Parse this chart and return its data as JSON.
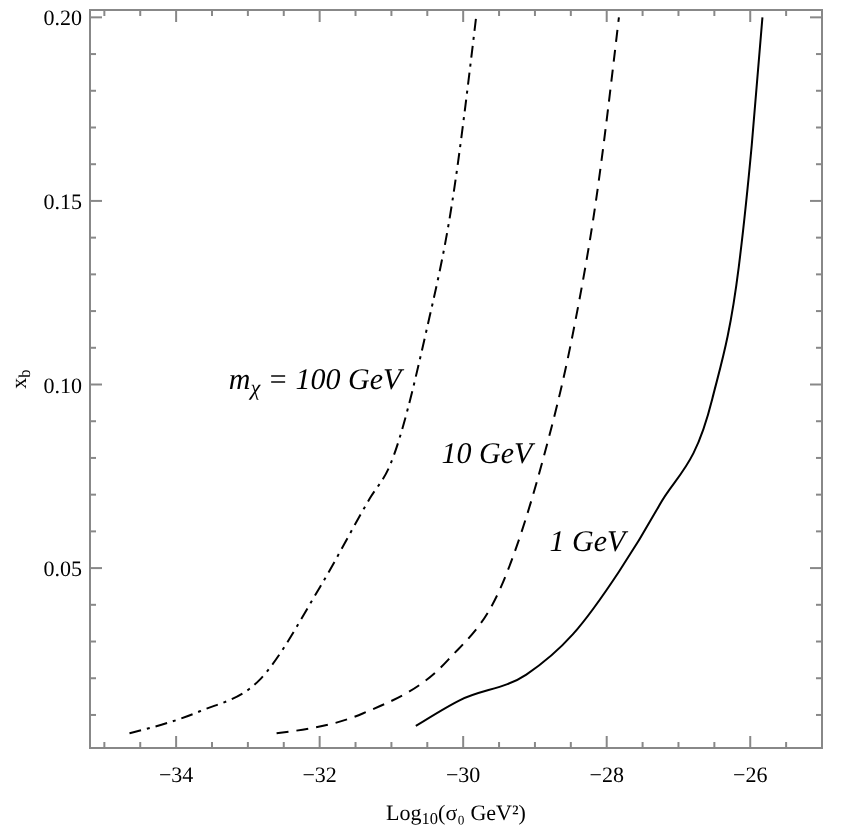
{
  "chart_data": {
    "type": "line",
    "xlabel": "Log$_{10}$(σ₀ GeV²)",
    "ylabel": "x$_{b}$",
    "xlim": [
      -35.2,
      -25
    ],
    "ylim": [
      0.001,
      0.202
    ],
    "xticks": [
      {
        "value": -35,
        "label": null
      },
      {
        "value": -34.5,
        "label": null
      },
      {
        "value": -34,
        "label": "−34"
      },
      {
        "value": -33.5,
        "label": null
      },
      {
        "value": -33,
        "label": null
      },
      {
        "value": -32.5,
        "label": null
      },
      {
        "value": -32,
        "label": "−32"
      },
      {
        "value": -31.5,
        "label": null
      },
      {
        "value": -31,
        "label": null
      },
      {
        "value": -30.5,
        "label": null
      },
      {
        "value": -30,
        "label": "−30"
      },
      {
        "value": -29.5,
        "label": null
      },
      {
        "value": -29,
        "label": null
      },
      {
        "value": -28.5,
        "label": null
      },
      {
        "value": -28,
        "label": "−28"
      },
      {
        "value": -27.5,
        "label": null
      },
      {
        "value": -27,
        "label": null
      },
      {
        "value": -26.5,
        "label": null
      },
      {
        "value": -26,
        "label": "−26"
      },
      {
        "value": -25.5,
        "label": null
      }
    ],
    "yticks": [
      {
        "value": 0.01,
        "label": null
      },
      {
        "value": 0.02,
        "label": null
      },
      {
        "value": 0.03,
        "label": null
      },
      {
        "value": 0.04,
        "label": null
      },
      {
        "value": 0.05,
        "label": "0.05"
      },
      {
        "value": 0.06,
        "label": null
      },
      {
        "value": 0.07,
        "label": null
      },
      {
        "value": 0.08,
        "label": null
      },
      {
        "value": 0.09,
        "label": null
      },
      {
        "value": 0.1,
        "label": "0.10"
      },
      {
        "value": 0.11,
        "label": null
      },
      {
        "value": 0.12,
        "label": null
      },
      {
        "value": 0.13,
        "label": null
      },
      {
        "value": 0.14,
        "label": null
      },
      {
        "value": 0.15,
        "label": "0.15"
      },
      {
        "value": 0.16,
        "label": null
      },
      {
        "value": 0.17,
        "label": null
      },
      {
        "value": 0.18,
        "label": null
      },
      {
        "value": 0.19,
        "label": null
      },
      {
        "value": 0.2,
        "label": "0.20"
      }
    ],
    "grid": false,
    "marker": "none",
    "series": [
      {
        "name": "m$_{χ}$ = 100 GeV",
        "color": "#000000",
        "line_style": "dashdot",
        "x": [
          -34.65,
          -33.67,
          -32.84,
          -31.99,
          -31.3,
          -31.02,
          -30.52,
          -30.15,
          -29.82
        ],
        "values": [
          0.005,
          0.011,
          0.0195,
          0.045,
          0.069,
          0.078,
          0.114,
          0.15,
          0.2
        ]
      },
      {
        "name": "10 GeV",
        "color": "#000000",
        "line_style": "dashed",
        "x": [
          -32.6,
          -31.4,
          -30.21,
          -29.47,
          -28.91,
          -28.47,
          -28.15,
          -27.83
        ],
        "values": [
          0.005,
          0.0104,
          0.025,
          0.045,
          0.078,
          0.114,
          0.15,
          0.2
        ]
      },
      {
        "name": "1 GeV",
        "color": "#000000",
        "line_style": "solid",
        "x": [
          -30.66,
          -30.05,
          -29.12,
          -28.47,
          -27.83,
          -27.27,
          -26.53,
          -26.16,
          -25.98,
          -25.83
        ],
        "values": [
          0.007,
          0.014,
          0.021,
          0.032,
          0.049,
          0.067,
          0.096,
          0.132,
          0.165,
          0.2
        ]
      }
    ]
  }
}
